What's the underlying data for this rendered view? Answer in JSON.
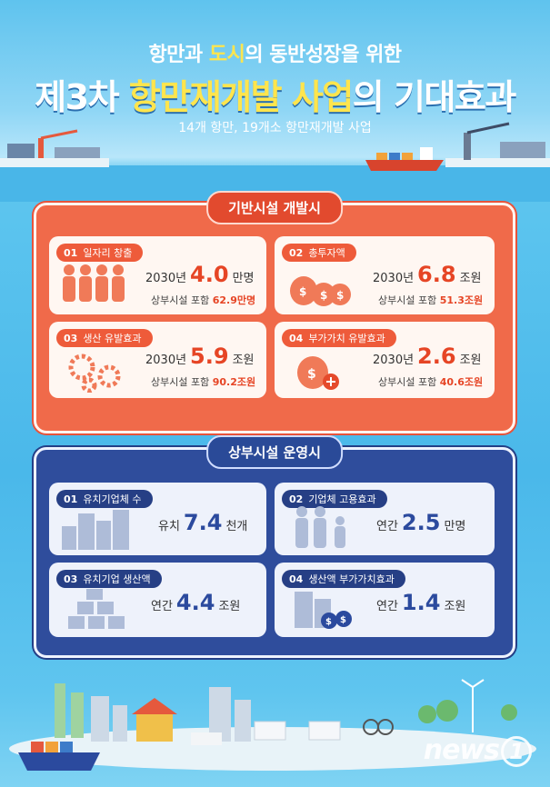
{
  "header": {
    "line1_a": "항만과 ",
    "line1_hl": "도시",
    "line1_b": "의 동반성장을 위한",
    "line2_a": "제3차 ",
    "line2_hl": "항만재개발 사업",
    "line2_b": "의 기대효과",
    "subtitle": "14개 항만, 19개소 항만재개발 사업"
  },
  "section_infra": {
    "title": "기반시설 개발시",
    "cards": [
      {
        "num": "01",
        "label": "일자리 창출",
        "year": "2030년",
        "value": "4.0",
        "unit": "만명",
        "sub_a": "상부시설 포함 ",
        "sub_b": "62.9만명"
      },
      {
        "num": "02",
        "label": "총투자액",
        "year": "2030년",
        "value": "6.8",
        "unit": "조원",
        "sub_a": "상부시설 포함 ",
        "sub_b": "51.3조원"
      },
      {
        "num": "03",
        "label": "생산 유발효과",
        "year": "2030년",
        "value": "5.9",
        "unit": "조원",
        "sub_a": "상부시설 포함 ",
        "sub_b": "90.2조원"
      },
      {
        "num": "04",
        "label": "부가가치 유발효과",
        "year": "2030년",
        "value": "2.6",
        "unit": "조원",
        "sub_a": "상부시설 포함 ",
        "sub_b": "40.6조원"
      }
    ]
  },
  "section_ops": {
    "title": "상부시설 운영시",
    "cards": [
      {
        "num": "01",
        "label": "유치기업체 수",
        "prefix": "유치",
        "value": "7.4",
        "unit": "천개"
      },
      {
        "num": "02",
        "label": "기업체 고용효과",
        "prefix": "연간",
        "value": "2.5",
        "unit": "만명"
      },
      {
        "num": "03",
        "label": "유치기업 생산액",
        "prefix": "연간",
        "value": "4.4",
        "unit": "조원"
      },
      {
        "num": "04",
        "label": "생산액 부가가치효과",
        "prefix": "연간",
        "value": "1.4",
        "unit": "조원"
      }
    ]
  },
  "watermark": {
    "text": "news",
    "one": "1"
  },
  "colors": {
    "accent_red": "#f06a4a",
    "accent_blue": "#2f4d9c",
    "highlight_yellow": "#ffe54d",
    "sky": "#5fc3ee"
  }
}
